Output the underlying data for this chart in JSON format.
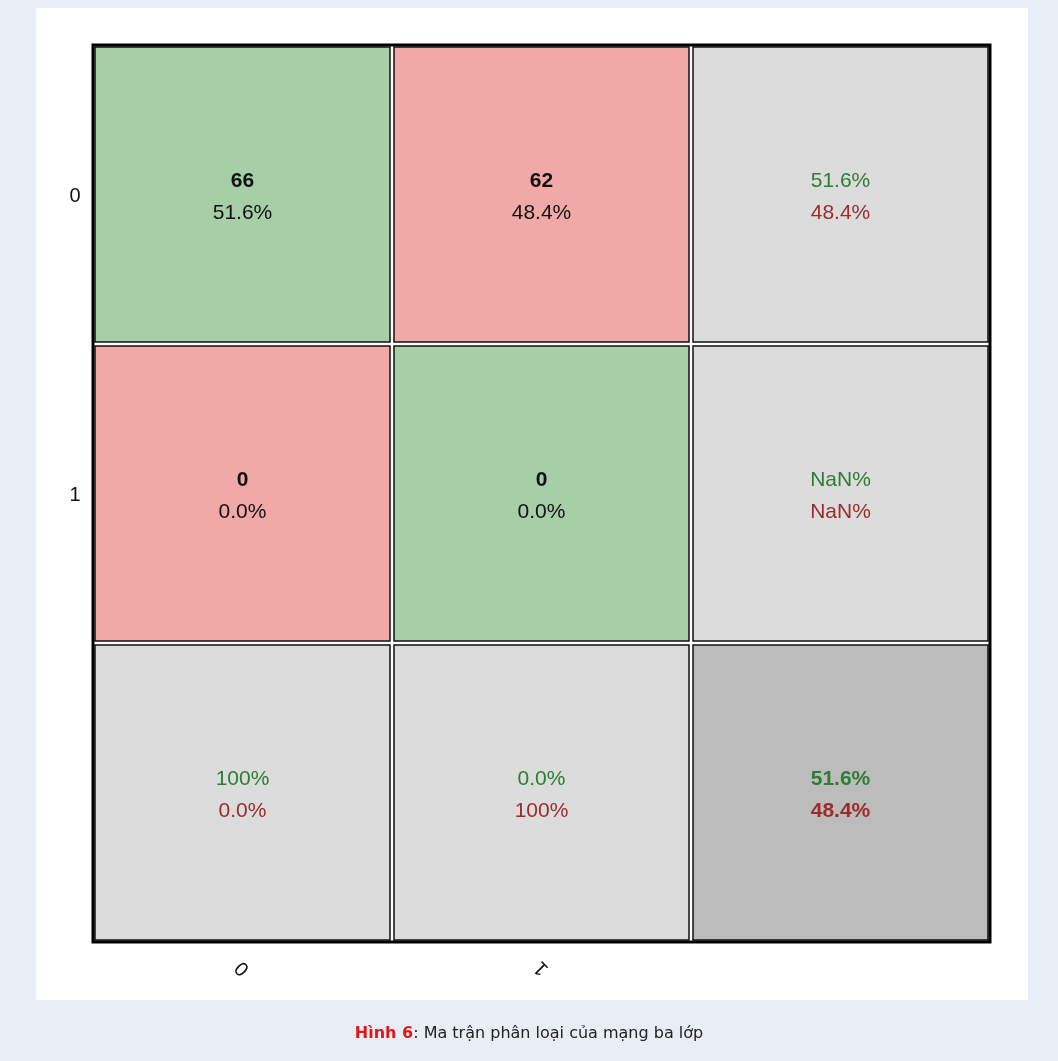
{
  "chart_data": {
    "type": "heatmap",
    "title": "Hình 6: Ma trận phân loại của mạng ba lớp",
    "categories": [
      "0",
      "1",
      null
    ],
    "y_categories": [
      "0",
      "1",
      null
    ],
    "cells": [
      [
        66,
        62,
        51.6
      ],
      [
        0,
        0,
        null
      ],
      [
        100,
        0.0,
        51.6
      ]
    ],
    "cell_labels": [
      [
        "66",
        "62",
        "51.6%"
      ],
      [
        "0",
        "0",
        "NaN%"
      ],
      [
        "100%",
        "0.0%",
        "51.6%"
      ]
    ],
    "annotations": [
      "51.6%",
      "48.4%",
      "48.4%",
      "0.0%",
      "0.0%",
      "NaN%",
      "0.0%",
      "100%",
      "48.4%"
    ],
    "colors": [
      [
        "#a6cfa8",
        "#f0a9a7",
        "#dcdcdc"
      ],
      [
        "#f0a9a7",
        "#a6cfa8",
        "#dcdcdc"
      ],
      [
        "#dcdcdc",
        "#dcdcdc",
        "#bcbcbc"
      ]
    ]
  }
}
